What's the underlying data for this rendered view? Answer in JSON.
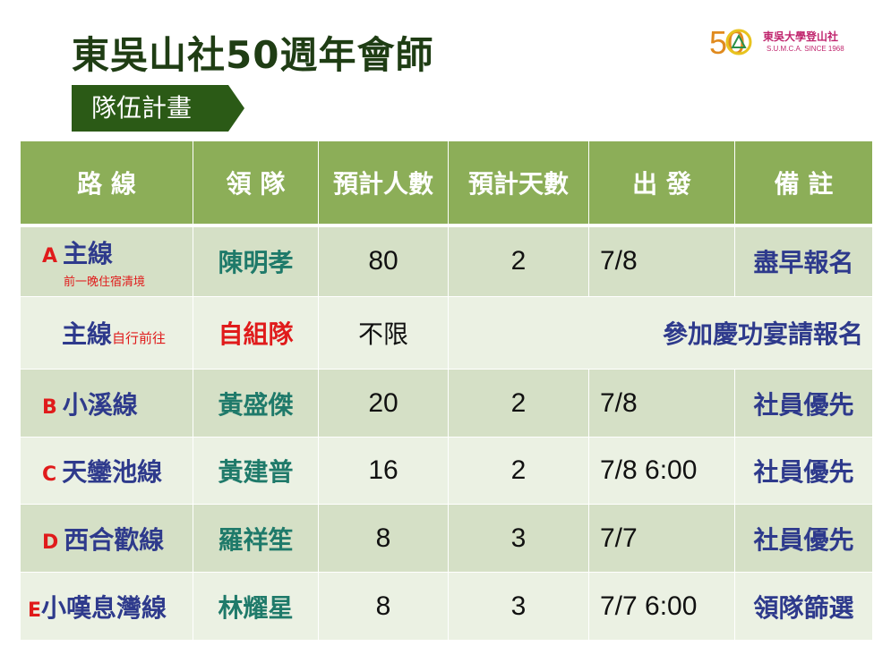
{
  "title": "東吳山社50週年會師",
  "logo": {
    "number": "50",
    "club_name": "東吳大學登山社",
    "subtitle": "S.U.M.C.A.  SINCE 1968"
  },
  "section_tag": "隊伍計畫",
  "table": {
    "headers": [
      "路 線",
      "領 隊",
      "預計人數",
      "預計天數",
      "出 發",
      "備 註"
    ],
    "rows": [
      {
        "letter": "A",
        "route": "主線",
        "note": "前一晚住宿清境",
        "leader": "陳明孝",
        "people": "80",
        "days": "2",
        "depart": "7/8",
        "remark": "盡早報名"
      },
      {
        "letter": "",
        "route": "主線",
        "note": "自行前往",
        "leader": "自組隊",
        "people": "不限",
        "days": "",
        "depart": "",
        "remark": "參加慶功宴請報名"
      },
      {
        "letter": "B",
        "route": "小溪線",
        "note": "",
        "leader": "黃盛傑",
        "people": "20",
        "days": "2",
        "depart": "7/8",
        "remark": "社員優先"
      },
      {
        "letter": "C",
        "route": "天鑾池線",
        "note": "",
        "leader": "黃建普",
        "people": "16",
        "days": "2",
        "depart": "7/8 6:00",
        "remark": "社員優先"
      },
      {
        "letter": "D",
        "route": "西合歡線",
        "note": "",
        "leader": "羅祥笙",
        "people": "8",
        "days": "3",
        "depart": "7/7",
        "remark": "社員優先"
      },
      {
        "letter": "E",
        "route": "小嘆息灣線",
        "note": "",
        "leader": "林耀星",
        "people": "8",
        "days": "3",
        "depart": "7/7 6:00",
        "remark": "領隊篩選"
      }
    ]
  },
  "colors": {
    "title": "#1f3d14",
    "section_tag_bg": "#2b5a16",
    "header_bg": "#8cae58",
    "row_dark": "#d5e0c6",
    "row_light": "#ebf1e3",
    "route_text": "#2e3a8c",
    "leader_text": "#1f7a6a",
    "accent_red": "#e01b1b"
  }
}
